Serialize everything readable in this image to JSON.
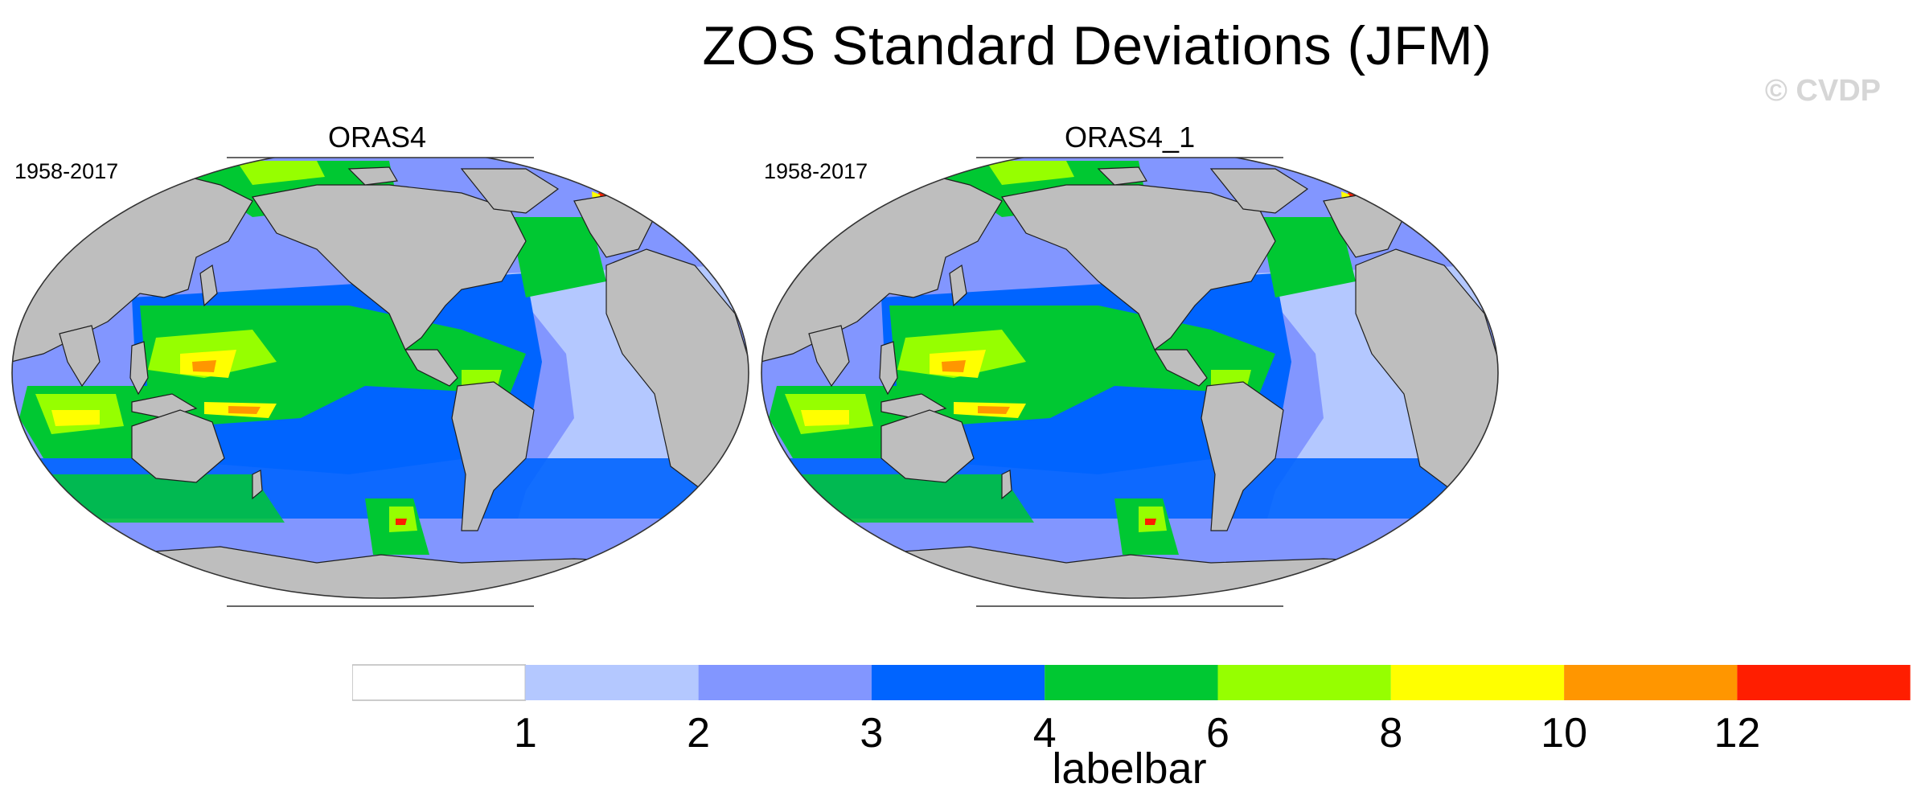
{
  "title": "ZOS Standard Deviations (JFM)",
  "copyright": "© CVDP",
  "panels": [
    {
      "name": "ORAS4",
      "period": "1958-2017"
    },
    {
      "name": "ORAS4_1",
      "period": "1958-2017"
    }
  ],
  "labelbar": {
    "title": "labelbar",
    "ticks": [
      "1",
      "2",
      "3",
      "4",
      "6",
      "8",
      "10",
      "12"
    ],
    "levels": [
      0,
      1,
      2,
      3,
      4,
      6,
      8,
      10,
      12
    ],
    "colors": [
      "#ffffff",
      "#b4c8ff",
      "#8296ff",
      "#0064ff",
      "#00c832",
      "#96ff00",
      "#ffff00",
      "#ff9600",
      "#ff1e00"
    ]
  },
  "colors": {
    "land": "#bebebe",
    "coast": "#1e1e1e",
    "background": "#ffffff"
  }
}
